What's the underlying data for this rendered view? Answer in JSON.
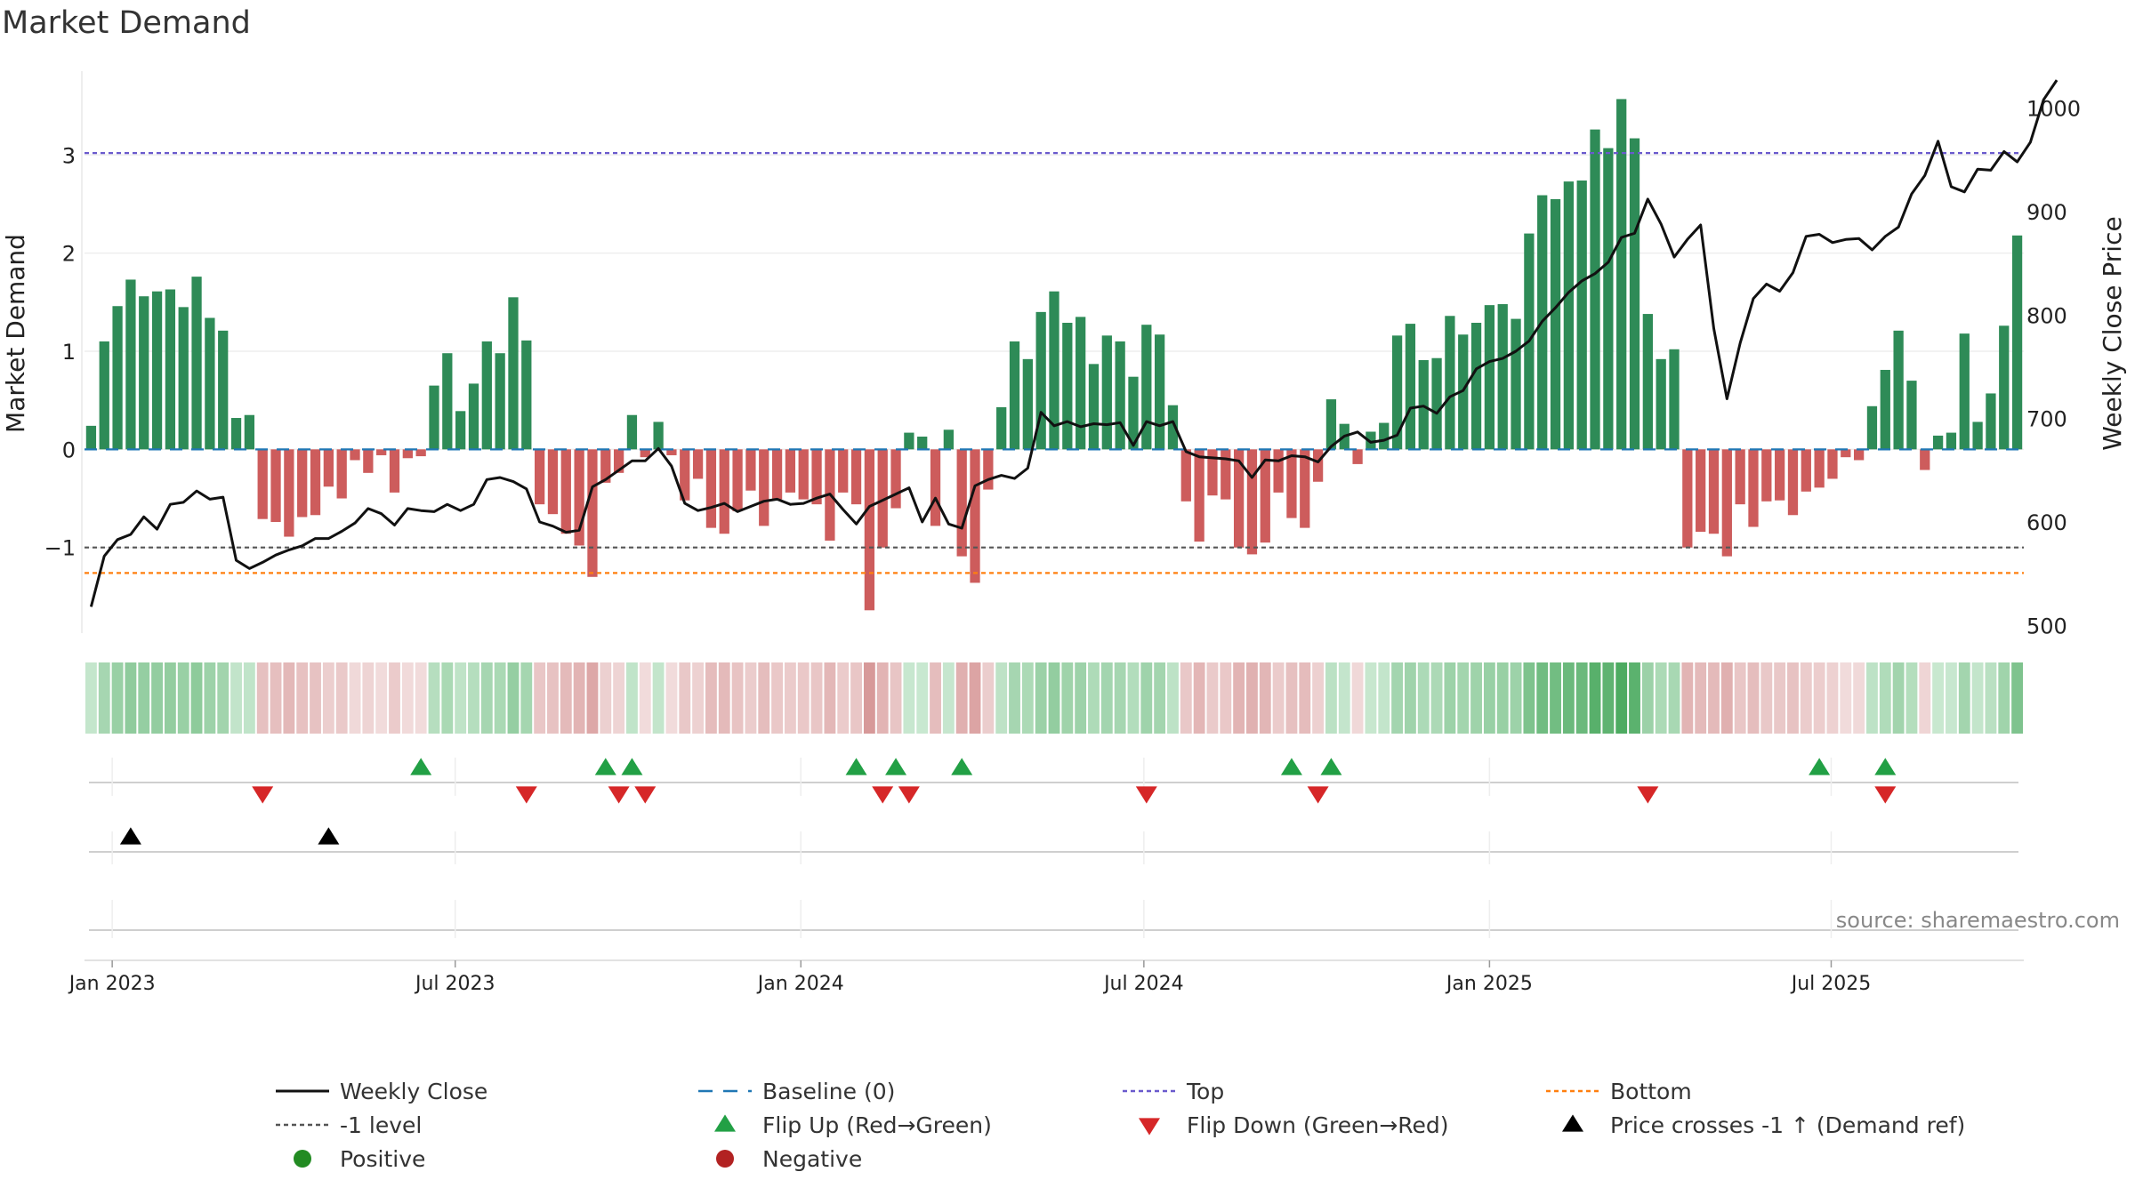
{
  "colors": {
    "positive": "#2e8b57",
    "negative": "#cd5c5c",
    "price": "#111111",
    "baseline": "#1f77b4",
    "top": "#6a5acd",
    "bottom": "#ff7f0e",
    "minus_one": "#555555",
    "flip_up": "#22a045",
    "flip_down": "#d62728",
    "cross": "#000000",
    "grid": "#eeeeee",
    "axis_text": "#222222",
    "source_text": "#888888"
  },
  "chart_data": {
    "type": "bar",
    "title": "Market Demand",
    "ylabel_left": "Market Demand",
    "ylabel_right": "Weekly Close Price",
    "source": "source: sharemaestro.com",
    "y_left": {
      "min": -1.9,
      "max": 3.9,
      "ticks": [
        -1,
        0,
        1,
        2,
        3
      ],
      "tick_labels": [
        "−1",
        "0",
        "1",
        "2",
        "3"
      ]
    },
    "y_right": {
      "min": 490,
      "max": 1040,
      "ticks": [
        500,
        600,
        700,
        800,
        900,
        1000
      ],
      "tick_labels": [
        "500",
        "600",
        "700",
        "800",
        "900",
        "1000"
      ]
    },
    "x_ticks": [
      {
        "week": 1.6,
        "label": "Jan 2023"
      },
      {
        "week": 27.6,
        "label": "Jul 2023"
      },
      {
        "week": 53.8,
        "label": "Jan 2024"
      },
      {
        "week": 79.8,
        "label": "Jul 2024"
      },
      {
        "week": 106.0,
        "label": "Jan 2025"
      },
      {
        "week": 131.9,
        "label": "Jul 2025"
      }
    ],
    "levels": {
      "top": 3.02,
      "bottom": -1.26,
      "minus_one": -1.0,
      "baseline": 0
    },
    "demand": [
      0.24,
      1.1,
      1.46,
      1.73,
      1.56,
      1.61,
      1.63,
      1.45,
      1.76,
      1.34,
      1.21,
      0.32,
      0.35,
      -0.71,
      -0.74,
      -0.89,
      -0.69,
      -0.67,
      -0.38,
      -0.5,
      -0.11,
      -0.24,
      -0.06,
      -0.44,
      -0.09,
      -0.07,
      0.65,
      0.98,
      0.39,
      0.67,
      1.1,
      0.98,
      1.55,
      1.11,
      -0.56,
      -0.66,
      -0.86,
      -0.98,
      -1.3,
      -0.34,
      -0.24,
      0.35,
      -0.08,
      0.28,
      -0.06,
      -0.52,
      -0.3,
      -0.8,
      -0.86,
      -0.63,
      -0.42,
      -0.78,
      -0.51,
      -0.44,
      -0.51,
      -0.56,
      -0.93,
      -0.44,
      -0.56,
      -1.64,
      -1.0,
      -0.6,
      0.17,
      0.13,
      -0.78,
      0.2,
      -1.09,
      -1.36,
      -0.41,
      0.43,
      1.1,
      0.92,
      1.4,
      1.61,
      1.29,
      1.35,
      0.87,
      1.16,
      1.1,
      0.74,
      1.27,
      1.17,
      0.45,
      -0.53,
      -0.94,
      -0.47,
      -0.51,
      -1.0,
      -1.07,
      -0.95,
      -0.44,
      -0.7,
      -0.8,
      -0.33,
      0.51,
      0.26,
      -0.15,
      0.18,
      0.27,
      1.16,
      1.28,
      0.91,
      0.93,
      1.36,
      1.17,
      1.29,
      1.47,
      1.48,
      1.33,
      2.2,
      2.59,
      2.55,
      2.73,
      2.74,
      3.26,
      3.07,
      3.57,
      3.17,
      1.38,
      0.92,
      1.02,
      -1.0,
      -0.84,
      -0.86,
      -1.09,
      -0.56,
      -0.79,
      -0.53,
      -0.52,
      -0.67,
      -0.43,
      -0.39,
      -0.3,
      -0.08,
      -0.11,
      0.44,
      0.81,
      1.21,
      0.7,
      -0.21,
      0.14,
      0.17,
      1.18,
      0.28,
      0.57,
      1.26,
      2.18
    ],
    "price": [
      518,
      567,
      583,
      588,
      605,
      593,
      617,
      619,
      630,
      622,
      624,
      563,
      555,
      561,
      568,
      573,
      577,
      584,
      584,
      591,
      599,
      613,
      608,
      597,
      613,
      611,
      610,
      617,
      611,
      617,
      641,
      643,
      639,
      632,
      600,
      596,
      590,
      592,
      634,
      641,
      650,
      659,
      659,
      671,
      654,
      618,
      611,
      614,
      618,
      610,
      615,
      620,
      622,
      617,
      618,
      623,
      627,
      612,
      598,
      615,
      621,
      627,
      633,
      600,
      623,
      598,
      594,
      635,
      641,
      645,
      642,
      652,
      706,
      693,
      697,
      692,
      695,
      694,
      696,
      674,
      697,
      693,
      697,
      668,
      663,
      662,
      661,
      659,
      643,
      660,
      659,
      664,
      663,
      658,
      673,
      683,
      687,
      677,
      679,
      684,
      710,
      712,
      705,
      721,
      727,
      748,
      755,
      758,
      765,
      775,
      794,
      807,
      822,
      833,
      840,
      851,
      875,
      879,
      912,
      888,
      856,
      873,
      887,
      787,
      719,
      773,
      816,
      830,
      823,
      841,
      876,
      878,
      870,
      873,
      874,
      863,
      876,
      885,
      917,
      935,
      968,
      924,
      919,
      941,
      940,
      958,
      948,
      967,
      1008,
      1027
    ],
    "signals": {
      "flip_up": [
        25,
        39,
        41,
        58,
        61,
        66,
        91,
        94,
        131,
        136
      ],
      "flip_down": [
        13,
        33,
        40,
        42,
        60,
        62,
        80,
        93,
        118,
        136
      ],
      "price_cross_up": [
        3,
        18
      ]
    },
    "heat_max": 3.6
  },
  "legend": [
    {
      "key": "weekly_close",
      "symbol": "line",
      "label": "Weekly Close"
    },
    {
      "key": "baseline",
      "symbol": "dash-long",
      "label": "Baseline (0)"
    },
    {
      "key": "top",
      "symbol": "dash-top",
      "label": "Top"
    },
    {
      "key": "bottom",
      "symbol": "dash-bottom",
      "label": "Bottom"
    },
    {
      "key": "minus_one",
      "symbol": "dash-minus",
      "label": "-1 level"
    },
    {
      "key": "flip_up",
      "symbol": "triangle-up-green",
      "label": "Flip Up (Red→Green)"
    },
    {
      "key": "flip_down",
      "symbol": "triangle-down-red",
      "label": "Flip Down (Green→Red)"
    },
    {
      "key": "price_cross",
      "symbol": "triangle-up-black",
      "label": "Price crosses -1 ↑ (Demand ref)"
    },
    {
      "key": "positive",
      "symbol": "dot-green",
      "label": "Positive"
    },
    {
      "key": "negative",
      "symbol": "dot-red",
      "label": "Negative"
    }
  ]
}
